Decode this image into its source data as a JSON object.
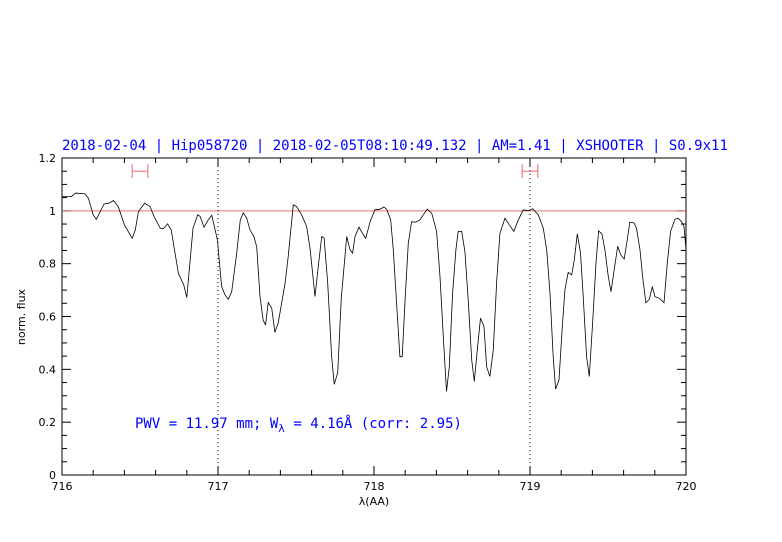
{
  "chart_data": {
    "type": "line",
    "title": "2018-02-04 | Hip058720 | 2018-02-05T08:10:49.132 | AM=1.41 | XSHOOTER | S0.9x11",
    "xlabel": "λ(AA)",
    "ylabel": "norm. flux",
    "xlim": [
      716,
      720
    ],
    "ylim": [
      0,
      1.2
    ],
    "xticks": [
      "716",
      "717",
      "718",
      "719",
      "720"
    ],
    "yticks": [
      "0",
      "0.2",
      "0.4",
      "0.6",
      "0.8",
      "1",
      "1.2"
    ],
    "grid": false,
    "reference_line": {
      "y": 1.0,
      "color": "#e07070"
    },
    "vertical_dotted_lines": [
      717,
      719
    ],
    "interval_markers": [
      {
        "x": [
          716.45,
          716.55
        ],
        "y": 1.15,
        "color": "#f08080"
      },
      {
        "x": [
          718.95,
          719.05
        ],
        "y": 1.15,
        "color": "#f08080"
      }
    ],
    "annotation": {
      "prefix": "PWV = 11.97 mm; W",
      "subscript": "λ",
      "suffix": " = 4.16Å (corr: 2.95)"
    },
    "colors": {
      "title": "#0000ff",
      "spectrum": "#000000"
    },
    "series": [
      {
        "x": [
          716.0,
          716.03,
          716.06,
          716.088,
          716.147,
          716.169,
          716.2,
          716.22,
          716.27,
          716.3,
          716.33,
          716.36,
          716.4,
          716.45,
          716.47,
          716.49,
          716.53,
          716.565,
          716.59,
          716.63,
          716.65,
          716.677,
          716.7,
          716.746,
          716.78,
          716.8,
          716.84,
          716.87,
          716.885,
          716.91,
          716.938,
          716.96,
          716.996,
          717.023,
          717.045,
          717.066,
          717.088,
          717.12,
          717.143,
          717.162,
          717.184,
          717.205,
          717.23,
          717.248,
          717.269,
          717.29,
          717.305,
          717.322,
          717.344,
          717.365,
          717.386,
          717.43,
          717.45,
          717.483,
          717.504,
          717.536,
          717.568,
          717.59,
          717.622,
          717.643,
          717.665,
          717.68,
          717.703,
          717.728,
          717.745,
          717.767,
          717.79,
          717.825,
          717.846,
          717.863,
          717.878,
          717.904,
          717.932,
          717.947,
          717.975,
          718.006,
          718.038,
          718.064,
          718.081,
          718.107,
          718.124,
          718.145,
          718.166,
          718.181,
          718.198,
          718.22,
          718.241,
          718.267,
          718.294,
          718.316,
          718.341,
          718.37,
          718.401,
          718.423,
          718.444,
          718.465,
          718.483,
          718.504,
          718.525,
          718.54,
          718.562,
          718.583,
          718.604,
          718.626,
          718.643,
          718.662,
          718.683,
          718.705,
          718.722,
          718.743,
          718.765,
          718.786,
          718.807,
          718.84,
          718.867,
          718.897,
          718.925,
          718.957,
          718.989,
          719.017,
          719.053,
          719.085,
          719.107,
          719.128,
          719.149,
          719.164,
          719.186,
          719.207,
          719.224,
          719.245,
          719.267,
          719.284,
          719.303,
          719.324,
          719.341,
          719.363,
          719.38,
          719.401,
          719.423,
          719.44,
          719.461,
          719.48,
          719.502,
          719.519,
          719.54,
          719.562,
          719.581,
          719.604,
          719.624,
          719.64,
          719.667,
          719.683,
          719.705,
          719.722,
          719.743,
          719.765,
          719.784,
          719.801,
          719.829,
          719.859,
          719.88,
          719.901,
          719.929,
          719.95,
          719.972,
          719.987,
          720.0
        ],
        "y": [
          1.054,
          1.054,
          1.054,
          1.067,
          1.064,
          1.048,
          0.985,
          0.968,
          1.026,
          1.029,
          1.039,
          1.016,
          0.947,
          0.896,
          0.928,
          0.997,
          1.029,
          1.016,
          0.979,
          0.934,
          0.932,
          0.951,
          0.928,
          0.763,
          0.72,
          0.672,
          0.934,
          0.985,
          0.979,
          0.938,
          0.966,
          0.983,
          0.89,
          0.714,
          0.682,
          0.665,
          0.694,
          0.84,
          0.966,
          0.992,
          0.972,
          0.928,
          0.903,
          0.864,
          0.676,
          0.585,
          0.569,
          0.653,
          0.632,
          0.54,
          0.575,
          0.727,
          0.827,
          1.023,
          1.016,
          0.985,
          0.941,
          0.859,
          0.676,
          0.79,
          0.903,
          0.897,
          0.727,
          0.45,
          0.343,
          0.387,
          0.665,
          0.903,
          0.853,
          0.84,
          0.903,
          0.938,
          0.909,
          0.896,
          0.959,
          1.004,
          1.006,
          1.014,
          1.006,
          0.966,
          0.852,
          0.65,
          0.448,
          0.448,
          0.65,
          0.878,
          0.959,
          0.957,
          0.966,
          0.985,
          1.006,
          0.991,
          0.922,
          0.751,
          0.524,
          0.316,
          0.41,
          0.688,
          0.852,
          0.922,
          0.922,
          0.846,
          0.663,
          0.436,
          0.354,
          0.474,
          0.594,
          0.562,
          0.41,
          0.373,
          0.474,
          0.726,
          0.915,
          0.972,
          0.947,
          0.922,
          0.966,
          1.004,
          1.0,
          1.008,
          0.985,
          0.934,
          0.852,
          0.688,
          0.448,
          0.325,
          0.36,
          0.562,
          0.701,
          0.767,
          0.758,
          0.815,
          0.913,
          0.84,
          0.676,
          0.448,
          0.373,
          0.575,
          0.802,
          0.924,
          0.913,
          0.853,
          0.751,
          0.694,
          0.777,
          0.866,
          0.834,
          0.818,
          0.891,
          0.957,
          0.954,
          0.934,
          0.852,
          0.751,
          0.652,
          0.665,
          0.713,
          0.675,
          0.669,
          0.652,
          0.802,
          0.922,
          0.968,
          0.972,
          0.959,
          0.94,
          0.852
        ]
      }
    ]
  }
}
